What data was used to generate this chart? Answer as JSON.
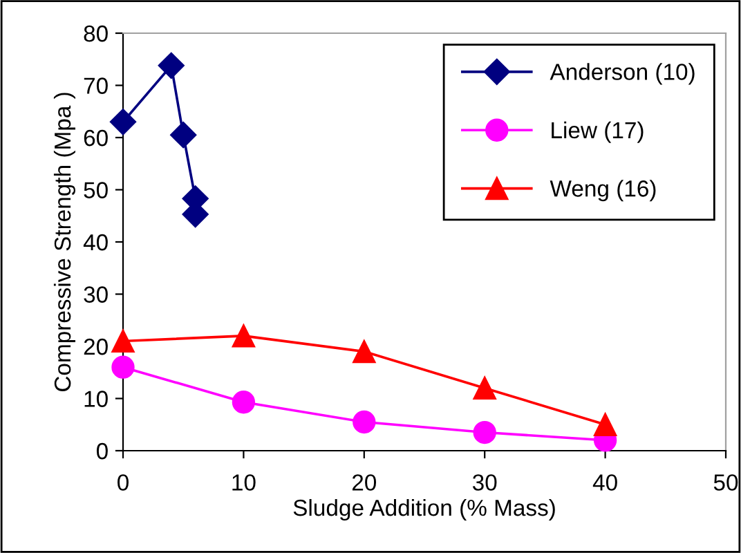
{
  "chart_data": {
    "type": "line",
    "xlabel": "Sludge Addition (% Mass)",
    "ylabel": "Compressive Strength (Mpa )",
    "xlim": [
      0,
      50
    ],
    "xticks": [
      0,
      10,
      20,
      30,
      40,
      50
    ],
    "ylim": [
      0,
      80
    ],
    "yticks": [
      0,
      10,
      20,
      30,
      40,
      50,
      60,
      70,
      80
    ],
    "grid": false,
    "legend": "top right",
    "series": [
      {
        "name": "Anderson (10)",
        "color": "#000080",
        "marker": "diamond",
        "x": [
          0,
          4,
          5,
          6,
          6
        ],
        "values": [
          63,
          73.8,
          60.5,
          48.3,
          45.3
        ]
      },
      {
        "name": "Liew (17)",
        "color": "#ff00ff",
        "marker": "circle",
        "x": [
          0,
          10,
          20,
          30,
          40
        ],
        "values": [
          16,
          9.3,
          5.5,
          3.5,
          2
        ]
      },
      {
        "name": "Weng (16)",
        "color": "#ff0000",
        "marker": "triangle",
        "x": [
          0,
          10,
          20,
          30,
          40
        ],
        "values": [
          21,
          22,
          19,
          12,
          5
        ]
      }
    ]
  }
}
